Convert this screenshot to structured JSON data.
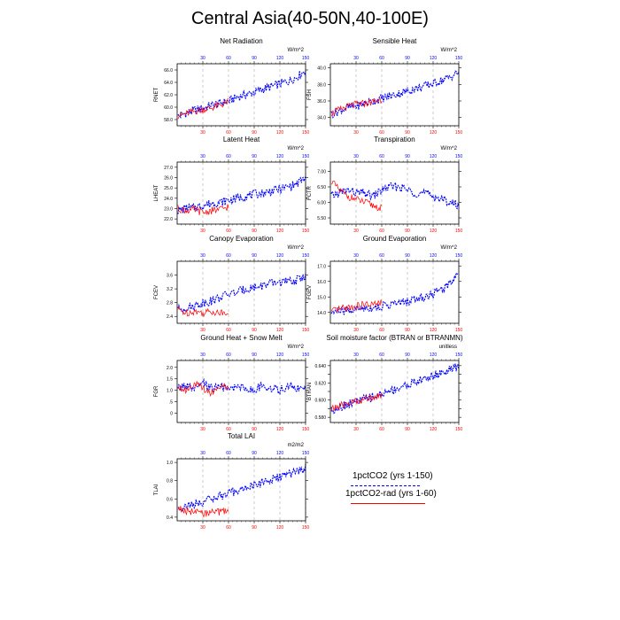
{
  "page": {
    "title": "Central Asia(40-50N,40-100E)"
  },
  "legend": {
    "entries": [
      {
        "label": "1pctCO2 (yrs 1-150)",
        "color": "#0000ff",
        "style": "dashed"
      },
      {
        "label": "1pctCO2-rad (yrs 1-60)",
        "color": "#ff0000",
        "style": "solid"
      }
    ]
  },
  "colors": {
    "series_a": "#0000ff",
    "series_b": "#ff0000",
    "grid": "#aaaaaa",
    "axis": "#000000"
  },
  "chart_data": [
    {
      "type": "line",
      "title": "Net Radiation",
      "unit": "W/m^2",
      "ylabel": "RNET",
      "xlim": [
        0,
        150
      ],
      "ylim": [
        57.0,
        67.0
      ],
      "yticks": [
        58.0,
        60.0,
        62.0,
        64.0,
        66.0
      ],
      "ytick_labels": [
        "58.0",
        "60.0",
        "62.0",
        "64.0",
        "66.0"
      ],
      "xticks": [
        30,
        60,
        90,
        120,
        150
      ],
      "grid": "vertical dashed at x ticks",
      "series": [
        {
          "name": "1pctCO2 (yrs 1-150)",
          "color": "#0000ff",
          "style": "dashed",
          "x": [
            1,
            10,
            20,
            30,
            40,
            50,
            60,
            70,
            80,
            90,
            100,
            110,
            120,
            130,
            140,
            150
          ],
          "y": [
            58.5,
            59.0,
            59.5,
            59.8,
            60.3,
            60.6,
            61.0,
            61.6,
            62.0,
            62.4,
            62.9,
            63.3,
            63.8,
            64.2,
            64.9,
            66.0
          ]
        },
        {
          "name": "1pctCO2-rad (yrs 1-60)",
          "color": "#ff0000",
          "style": "solid",
          "x": [
            1,
            10,
            20,
            30,
            40,
            50,
            60
          ],
          "y": [
            58.6,
            58.9,
            59.3,
            59.6,
            59.9,
            60.3,
            60.9
          ]
        }
      ]
    },
    {
      "type": "line",
      "title": "Sensible Heat",
      "unit": "W/m^2",
      "ylabel": "FSH",
      "xlim": [
        0,
        150
      ],
      "ylim": [
        33.0,
        40.5
      ],
      "yticks": [
        34.0,
        36.0,
        38.0,
        40.0
      ],
      "ytick_labels": [
        "34.0",
        "36.0",
        "38.0",
        "40.0"
      ],
      "xticks": [
        30,
        60,
        90,
        120,
        150
      ],
      "grid": "vertical dashed at x ticks",
      "series": [
        {
          "name": "1pctCO2 (yrs 1-150)",
          "color": "#0000ff",
          "style": "dashed",
          "x": [
            1,
            10,
            20,
            30,
            40,
            50,
            60,
            70,
            80,
            90,
            100,
            110,
            120,
            130,
            140,
            150
          ],
          "y": [
            34.4,
            34.8,
            35.2,
            35.4,
            35.7,
            36.0,
            36.3,
            36.6,
            36.9,
            37.2,
            37.5,
            37.8,
            38.1,
            38.5,
            38.9,
            39.5
          ]
        },
        {
          "name": "1pctCO2-rad (yrs 1-60)",
          "color": "#ff0000",
          "style": "solid",
          "x": [
            1,
            10,
            20,
            30,
            40,
            50,
            60
          ],
          "y": [
            34.5,
            34.9,
            35.3,
            35.6,
            35.7,
            35.9,
            36.2
          ]
        }
      ]
    },
    {
      "type": "line",
      "title": "Latent Heat",
      "unit": "W/m^2",
      "ylabel": "LHEAT",
      "xlim": [
        0,
        150
      ],
      "ylim": [
        21.5,
        27.5
      ],
      "yticks": [
        22.0,
        23.0,
        24.0,
        25.0,
        26.0,
        27.0
      ],
      "ytick_labels": [
        "22.0",
        "23.0",
        "24.0",
        "25.0",
        "26.0",
        "27.0"
      ],
      "xticks": [
        30,
        60,
        90,
        120,
        150
      ],
      "grid": "vertical dashed at x ticks",
      "series": [
        {
          "name": "1pctCO2 (yrs 1-150)",
          "color": "#0000ff",
          "style": "dashed",
          "x": [
            1,
            10,
            20,
            30,
            40,
            50,
            60,
            70,
            80,
            90,
            100,
            110,
            120,
            130,
            140,
            150
          ],
          "y": [
            22.8,
            23.0,
            23.1,
            23.3,
            23.5,
            23.6,
            23.8,
            24.0,
            24.2,
            24.4,
            24.5,
            24.7,
            24.9,
            25.1,
            25.4,
            26.0
          ]
        },
        {
          "name": "1pctCO2-rad (yrs 1-60)",
          "color": "#ff0000",
          "style": "solid",
          "x": [
            1,
            10,
            20,
            30,
            40,
            50,
            60
          ],
          "y": [
            23.0,
            22.8,
            22.9,
            22.6,
            22.8,
            22.9,
            23.2
          ]
        }
      ]
    },
    {
      "type": "line",
      "title": "Transpiration",
      "unit": "W/m^2",
      "ylabel": "FCTR",
      "xlim": [
        0,
        150
      ],
      "ylim": [
        5.3,
        7.3
      ],
      "yticks": [
        5.5,
        6.0,
        6.5,
        7.0
      ],
      "ytick_labels": [
        "5.50",
        "6.00",
        "6.50",
        "7.00"
      ],
      "xticks": [
        30,
        60,
        90,
        120,
        150
      ],
      "grid": "vertical dashed at x ticks",
      "series": [
        {
          "name": "1pctCO2 (yrs 1-150)",
          "color": "#0000ff",
          "style": "dashed",
          "x": [
            1,
            10,
            20,
            30,
            40,
            50,
            60,
            70,
            80,
            90,
            100,
            110,
            120,
            130,
            140,
            150
          ],
          "y": [
            6.2,
            6.3,
            6.4,
            6.3,
            6.3,
            6.2,
            6.4,
            6.5,
            6.5,
            6.4,
            6.3,
            6.3,
            6.2,
            6.1,
            6.0,
            5.9
          ]
        },
        {
          "name": "1pctCO2-rad (yrs 1-60)",
          "color": "#ff0000",
          "style": "solid",
          "x": [
            1,
            10,
            20,
            30,
            40,
            50,
            60
          ],
          "y": [
            6.7,
            6.4,
            6.2,
            6.1,
            6.0,
            5.9,
            5.8
          ]
        }
      ]
    },
    {
      "type": "line",
      "title": "Canopy Evaporation",
      "unit": "W/m^2",
      "ylabel": "FCEV",
      "xlim": [
        0,
        150
      ],
      "ylim": [
        2.2,
        4.0
      ],
      "yticks": [
        2.4,
        2.8,
        3.2,
        3.6
      ],
      "ytick_labels": [
        "2.4",
        "2.8",
        "3.2",
        "3.6"
      ],
      "xticks": [
        30,
        60,
        90,
        120,
        150
      ],
      "grid": "vertical dashed at x ticks",
      "series": [
        {
          "name": "1pctCO2 (yrs 1-150)",
          "color": "#0000ff",
          "style": "dashed",
          "x": [
            1,
            10,
            20,
            30,
            40,
            50,
            60,
            70,
            80,
            90,
            100,
            110,
            120,
            130,
            140,
            150
          ],
          "y": [
            2.6,
            2.65,
            2.7,
            2.8,
            2.85,
            2.95,
            3.05,
            3.1,
            3.2,
            3.25,
            3.3,
            3.35,
            3.4,
            3.4,
            3.45,
            3.6
          ]
        },
        {
          "name": "1pctCO2-rad (yrs 1-60)",
          "color": "#ff0000",
          "style": "solid",
          "x": [
            1,
            10,
            20,
            30,
            40,
            50,
            60
          ],
          "y": [
            2.6,
            2.5,
            2.55,
            2.5,
            2.55,
            2.5,
            2.55
          ]
        }
      ]
    },
    {
      "type": "line",
      "title": "Ground Evaporation",
      "unit": "W/m^2",
      "ylabel": "FGEV",
      "xlim": [
        0,
        150
      ],
      "ylim": [
        13.3,
        17.3
      ],
      "yticks": [
        14.0,
        15.0,
        16.0,
        17.0
      ],
      "ytick_labels": [
        "14.0",
        "15.0",
        "16.0",
        "17.0"
      ],
      "xticks": [
        30,
        60,
        90,
        120,
        150
      ],
      "grid": "vertical dashed at x ticks",
      "series": [
        {
          "name": "1pctCO2 (yrs 1-150)",
          "color": "#0000ff",
          "style": "dashed",
          "x": [
            1,
            10,
            20,
            30,
            40,
            50,
            60,
            70,
            80,
            90,
            100,
            110,
            120,
            130,
            140,
            150
          ],
          "y": [
            14.0,
            14.1,
            14.1,
            14.2,
            14.3,
            14.3,
            14.4,
            14.5,
            14.6,
            14.7,
            14.9,
            15.0,
            15.2,
            15.5,
            15.9,
            16.7
          ]
        },
        {
          "name": "1pctCO2-rad (yrs 1-60)",
          "color": "#ff0000",
          "style": "solid",
          "x": [
            1,
            10,
            20,
            30,
            40,
            50,
            60
          ],
          "y": [
            14.0,
            14.2,
            14.3,
            14.4,
            14.5,
            14.5,
            14.6
          ]
        }
      ]
    },
    {
      "type": "line",
      "title": "Ground Heat + Snow Melt",
      "unit": "W/m^2",
      "ylabel": "FGR",
      "xlim": [
        0,
        150
      ],
      "ylim": [
        -0.4,
        2.3
      ],
      "yticks": [
        0.0,
        0.5,
        1.0,
        1.5,
        2.0
      ],
      "ytick_labels": [
        "0",
        ".5",
        "1.0",
        "1.5",
        "2.0"
      ],
      "xticks": [
        30,
        60,
        90,
        120,
        150
      ],
      "grid": "vertical dashed at x ticks",
      "series": [
        {
          "name": "1pctCO2 (yrs 1-150)",
          "color": "#0000ff",
          "style": "dashed",
          "x": [
            1,
            10,
            20,
            30,
            40,
            50,
            60,
            70,
            80,
            90,
            100,
            110,
            120,
            130,
            140,
            150
          ],
          "y": [
            1.1,
            1.2,
            1.0,
            1.3,
            1.1,
            1.2,
            1.0,
            1.2,
            1.1,
            1.0,
            1.2,
            1.1,
            1.0,
            1.2,
            1.1,
            1.0
          ]
        },
        {
          "name": "1pctCO2-rad (yrs 1-60)",
          "color": "#ff0000",
          "style": "solid",
          "x": [
            1,
            10,
            20,
            30,
            40,
            50,
            60
          ],
          "y": [
            1.2,
            1.0,
            1.3,
            1.1,
            0.9,
            1.2,
            1.1
          ]
        }
      ]
    },
    {
      "type": "line",
      "title": "Soil moisture factor (BTRAN or BTRANMN)",
      "unit": "unitless",
      "ylabel": "BTRAN",
      "xlim": [
        0,
        150
      ],
      "ylim": [
        0.574,
        0.646
      ],
      "yticks": [
        0.58,
        0.59,
        0.6,
        0.61,
        0.62,
        0.63,
        0.64
      ],
      "ytick_labels": [
        "0.580",
        "",
        "0.600",
        "",
        "0.620",
        "",
        "0.640"
      ],
      "xticks": [
        30,
        60,
        90,
        120,
        150
      ],
      "grid": "vertical dashed at x ticks",
      "series": [
        {
          "name": "1pctCO2 (yrs 1-150)",
          "color": "#0000ff",
          "style": "dashed",
          "x": [
            1,
            10,
            20,
            30,
            40,
            50,
            60,
            70,
            80,
            90,
            100,
            110,
            120,
            130,
            140,
            150
          ],
          "y": [
            0.588,
            0.592,
            0.595,
            0.598,
            0.601,
            0.604,
            0.607,
            0.611,
            0.614,
            0.618,
            0.621,
            0.625,
            0.628,
            0.632,
            0.635,
            0.639
          ]
        },
        {
          "name": "1pctCO2-rad (yrs 1-60)",
          "color": "#ff0000",
          "style": "solid",
          "x": [
            1,
            10,
            20,
            30,
            40,
            50,
            60
          ],
          "y": [
            0.589,
            0.593,
            0.596,
            0.599,
            0.601,
            0.604,
            0.606
          ]
        }
      ]
    },
    {
      "type": "line",
      "title": "Total LAI",
      "unit": "m2/m2",
      "ylabel": "TLAI",
      "xlim": [
        0,
        150
      ],
      "ylim": [
        0.36,
        1.04
      ],
      "yticks": [
        0.4,
        0.6,
        0.8,
        1.0
      ],
      "ytick_labels": [
        "0.4",
        "0.6",
        "0.8",
        "1.0"
      ],
      "xticks": [
        30,
        60,
        90,
        120,
        150
      ],
      "grid": "vertical dashed at x ticks",
      "series": [
        {
          "name": "1pctCO2 (yrs 1-150)",
          "color": "#0000ff",
          "style": "dashed",
          "x": [
            1,
            10,
            20,
            30,
            40,
            50,
            60,
            70,
            80,
            90,
            100,
            110,
            120,
            130,
            140,
            150
          ],
          "y": [
            0.5,
            0.52,
            0.54,
            0.57,
            0.6,
            0.63,
            0.66,
            0.69,
            0.72,
            0.75,
            0.78,
            0.81,
            0.84,
            0.87,
            0.9,
            0.94
          ]
        },
        {
          "name": "1pctCO2-rad (yrs 1-60)",
          "color": "#ff0000",
          "style": "solid",
          "x": [
            1,
            10,
            20,
            30,
            40,
            50,
            60
          ],
          "y": [
            0.5,
            0.47,
            0.45,
            0.44,
            0.45,
            0.46,
            0.47
          ]
        }
      ]
    }
  ]
}
